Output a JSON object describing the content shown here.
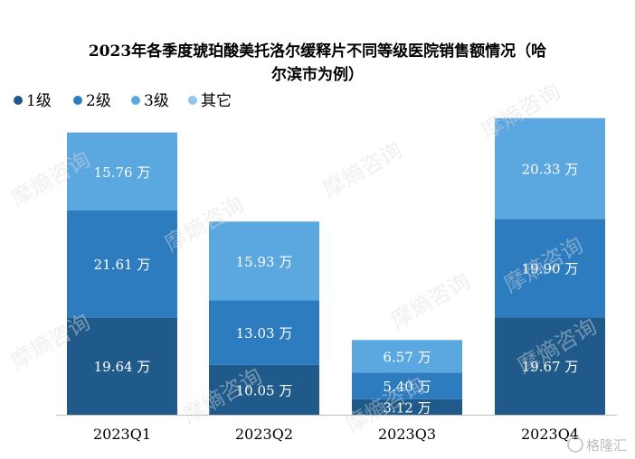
{
  "chart_data": {
    "type": "bar",
    "stacked": true,
    "title": "2023年各季度琥珀酸美托洛尔缓释片不同等级医院销售额情况（哈尔滨市为例）",
    "title_lines": [
      "2023年各季度琥珀酸美托洛尔缓释片不同等级医院销售额情况（哈",
      "尔滨市为例）"
    ],
    "categories": [
      "2023Q1",
      "2023Q2",
      "2023Q3",
      "2023Q4"
    ],
    "series": [
      {
        "name": "1级",
        "color": "#1f5a8a",
        "values": [
          19.64,
          10.05,
          3.12,
          19.67
        ]
      },
      {
        "name": "2级",
        "color": "#2e7cc0",
        "values": [
          21.61,
          13.03,
          5.4,
          19.9
        ]
      },
      {
        "name": "3级",
        "color": "#5ba7e0",
        "values": [
          15.76,
          15.93,
          6.57,
          20.33
        ]
      },
      {
        "name": "其它",
        "color": "#93c6ee",
        "values": [
          0,
          0,
          0,
          0
        ]
      }
    ],
    "unit": "万",
    "legend_position": "top-left",
    "xlabel": "",
    "ylabel": "",
    "grid": false
  },
  "watermark": {
    "text": "摩熵咨询",
    "brand": "格隆汇"
  }
}
